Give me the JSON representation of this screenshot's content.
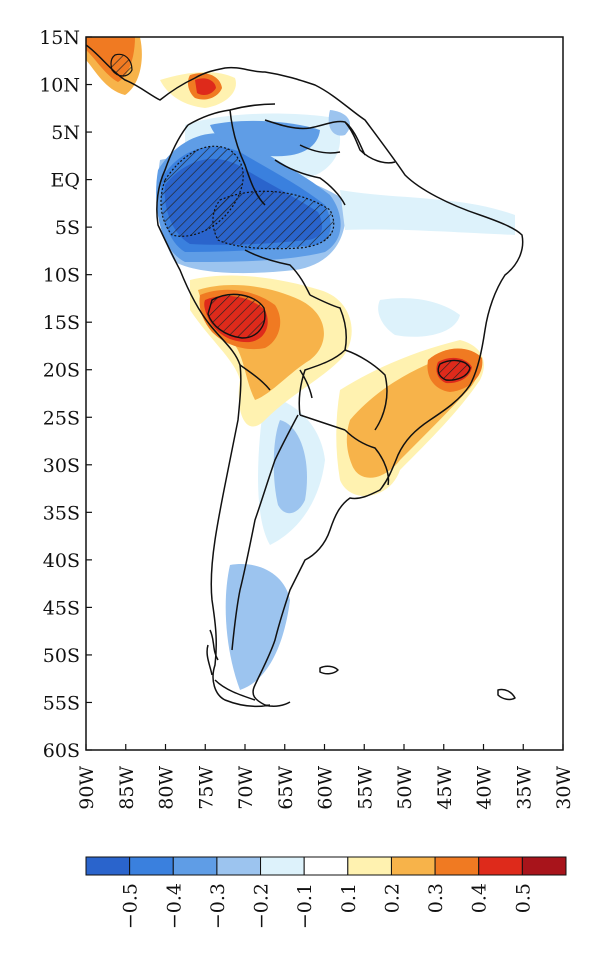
{
  "chart_data": {
    "type": "heatmap",
    "x_ticks": [
      "90W",
      "85W",
      "80W",
      "75W",
      "70W",
      "65W",
      "60W",
      "55W",
      "50W",
      "45W",
      "40W",
      "35W",
      "30W"
    ],
    "y_ticks": [
      "15N",
      "10N",
      "5N",
      "EQ",
      "5S",
      "10S",
      "15S",
      "20S",
      "25S",
      "30S",
      "35S",
      "40S",
      "45S",
      "50S",
      "55S",
      "60S"
    ],
    "lon_range": [
      -90,
      -30
    ],
    "lat_range": [
      -60,
      15
    ],
    "colorbar": {
      "labels": [
        "−0.5",
        "−0.4",
        "−0.3",
        "−0.2",
        "−0.1",
        "0.1",
        "0.2",
        "0.3",
        "0.4",
        "0.5"
      ],
      "colors": [
        "#2a64cc",
        "#3a80de",
        "#5f9de6",
        "#9cc4ef",
        "#ddf2fb",
        "#ffffff",
        "#fff2b0",
        "#f7b34a",
        "#f07a22",
        "#de2a1b",
        "#a8141b"
      ]
    }
  }
}
